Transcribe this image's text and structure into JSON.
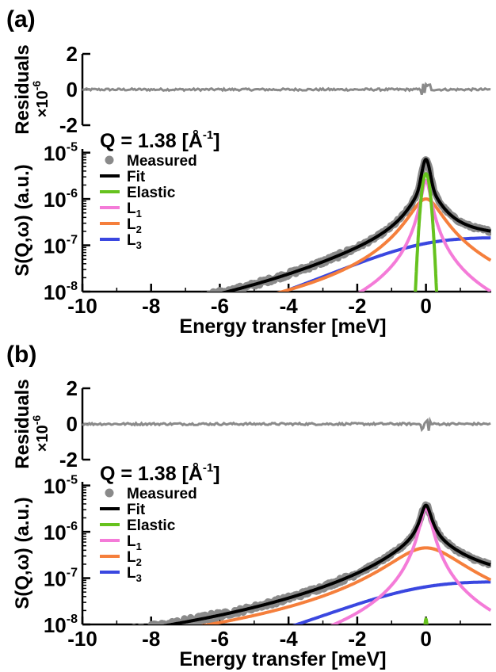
{
  "figure": {
    "xlabel": "Energy transfer [meV]",
    "residual_label": "Residuals",
    "residual_unit": "×10",
    "residual_exp": "-6",
    "ylabel": "S(Q,ω) (a.u.)"
  },
  "chart_data": [
    {
      "type": "line",
      "panel_label": "(a)",
      "annotation_prefix": "Q = 1.38 [Å",
      "annotation_exp": "-1",
      "annotation_suffix": "]",
      "xlim": [
        -10,
        1.9
      ],
      "xticks": [
        -10,
        -8,
        -6,
        -4,
        -2,
        0
      ],
      "residuals": {
        "ylim": [
          -2,
          2
        ],
        "yticks": [
          -2,
          0,
          2
        ],
        "scale": "x10^-6",
        "values": "approximately 0 across range, small spike near 0 meV"
      },
      "yscale": "log",
      "ylim": [
        1e-08,
        1.2e-05
      ],
      "yticks": [
        {
          "exp": "-8",
          "value": 1e-08
        },
        {
          "exp": "-7",
          "value": 1e-07
        },
        {
          "exp": "-6",
          "value": 1e-06
        },
        {
          "exp": "-5",
          "value": 1e-05
        }
      ],
      "legend": [
        {
          "label": "Measured",
          "sub": "",
          "color": "#8a8a8a",
          "kind": "marker"
        },
        {
          "label": "Fit",
          "sub": "",
          "color": "#000000",
          "kind": "line"
        },
        {
          "label": "Elastic",
          "sub": "",
          "color": "#66c21e",
          "kind": "line"
        },
        {
          "label": "L",
          "sub": "1",
          "color": "#f47bd8",
          "kind": "line"
        },
        {
          "label": "L",
          "sub": "2",
          "color": "#f57f3c",
          "kind": "line"
        },
        {
          "label": "L",
          "sub": "3",
          "color": "#3a47e0",
          "kind": "line"
        }
      ],
      "series": [
        {
          "name": "Elastic",
          "color": "#66c21e",
          "model": "gaussian",
          "amplitude": 3.5e-06,
          "center": 0,
          "sigma": 0.09
        },
        {
          "name": "L1",
          "color": "#f47bd8",
          "model": "lorentzian",
          "amplitude": 2.5e-06,
          "hwhm": 0.12
        },
        {
          "name": "L2",
          "color": "#f57f3c",
          "model": "lorentzian",
          "amplitude": 1e-06,
          "hwhm": 0.42
        },
        {
          "name": "L3",
          "color": "#3a47e0",
          "model": "lorentzian",
          "amplitude": 1.1e-07,
          "hwhm": 3.0,
          "detailed_balance_T_meV": 1.55
        },
        {
          "name": "Fit",
          "color": "#000000",
          "model": "sum"
        },
        {
          "name": "Measured",
          "color": "#8a8a8a",
          "model": "measured"
        }
      ]
    },
    {
      "type": "line",
      "panel_label": "(b)",
      "annotation_prefix": "Q = 1.38 [Å",
      "annotation_exp": "-1",
      "annotation_suffix": "]",
      "xlim": [
        -10,
        1.9
      ],
      "xticks": [
        -10,
        -8,
        -6,
        -4,
        -2,
        0
      ],
      "residuals": {
        "ylim": [
          -2,
          2
        ],
        "yticks": [
          -2,
          0,
          2
        ],
        "scale": "x10^-6",
        "values": "approximately 0 across range, small spike near 0 meV"
      },
      "yscale": "log",
      "ylim": [
        1e-08,
        1.2e-05
      ],
      "yticks": [
        {
          "exp": "-8",
          "value": 1e-08
        },
        {
          "exp": "-7",
          "value": 1e-07
        },
        {
          "exp": "-6",
          "value": 1e-06
        },
        {
          "exp": "-5",
          "value": 1e-05
        }
      ],
      "legend": [
        {
          "label": "Measured",
          "sub": "",
          "color": "#8a8a8a",
          "kind": "marker"
        },
        {
          "label": "Fit",
          "sub": "",
          "color": "#000000",
          "kind": "line"
        },
        {
          "label": "Elastic",
          "sub": "",
          "color": "#66c21e",
          "kind": "line"
        },
        {
          "label": "L",
          "sub": "1",
          "color": "#f47bd8",
          "kind": "line"
        },
        {
          "label": "L",
          "sub": "2",
          "color": "#f57f3c",
          "kind": "line"
        },
        {
          "label": "L",
          "sub": "3",
          "color": "#3a47e0",
          "kind": "line"
        }
      ],
      "series": [
        {
          "name": "Elastic",
          "color": "#66c21e",
          "model": "gaussian",
          "amplitude": 1.3e-08,
          "center": 0,
          "sigma": 0.035
        },
        {
          "name": "L1",
          "color": "#f47bd8",
          "model": "lorentzian",
          "amplitude": 3.2e-06,
          "hwhm": 0.15
        },
        {
          "name": "L2",
          "color": "#f57f3c",
          "model": "lorentzian",
          "amplitude": 4.5e-07,
          "hwhm": 0.95
        },
        {
          "name": "L3",
          "color": "#3a47e0",
          "model": "lorentzian",
          "amplitude": 6.5e-08,
          "hwhm": 3.3,
          "detailed_balance_T_meV": 1.8
        },
        {
          "name": "Fit",
          "color": "#000000",
          "model": "sum"
        },
        {
          "name": "Measured",
          "color": "#8a8a8a",
          "model": "measured"
        }
      ]
    }
  ]
}
